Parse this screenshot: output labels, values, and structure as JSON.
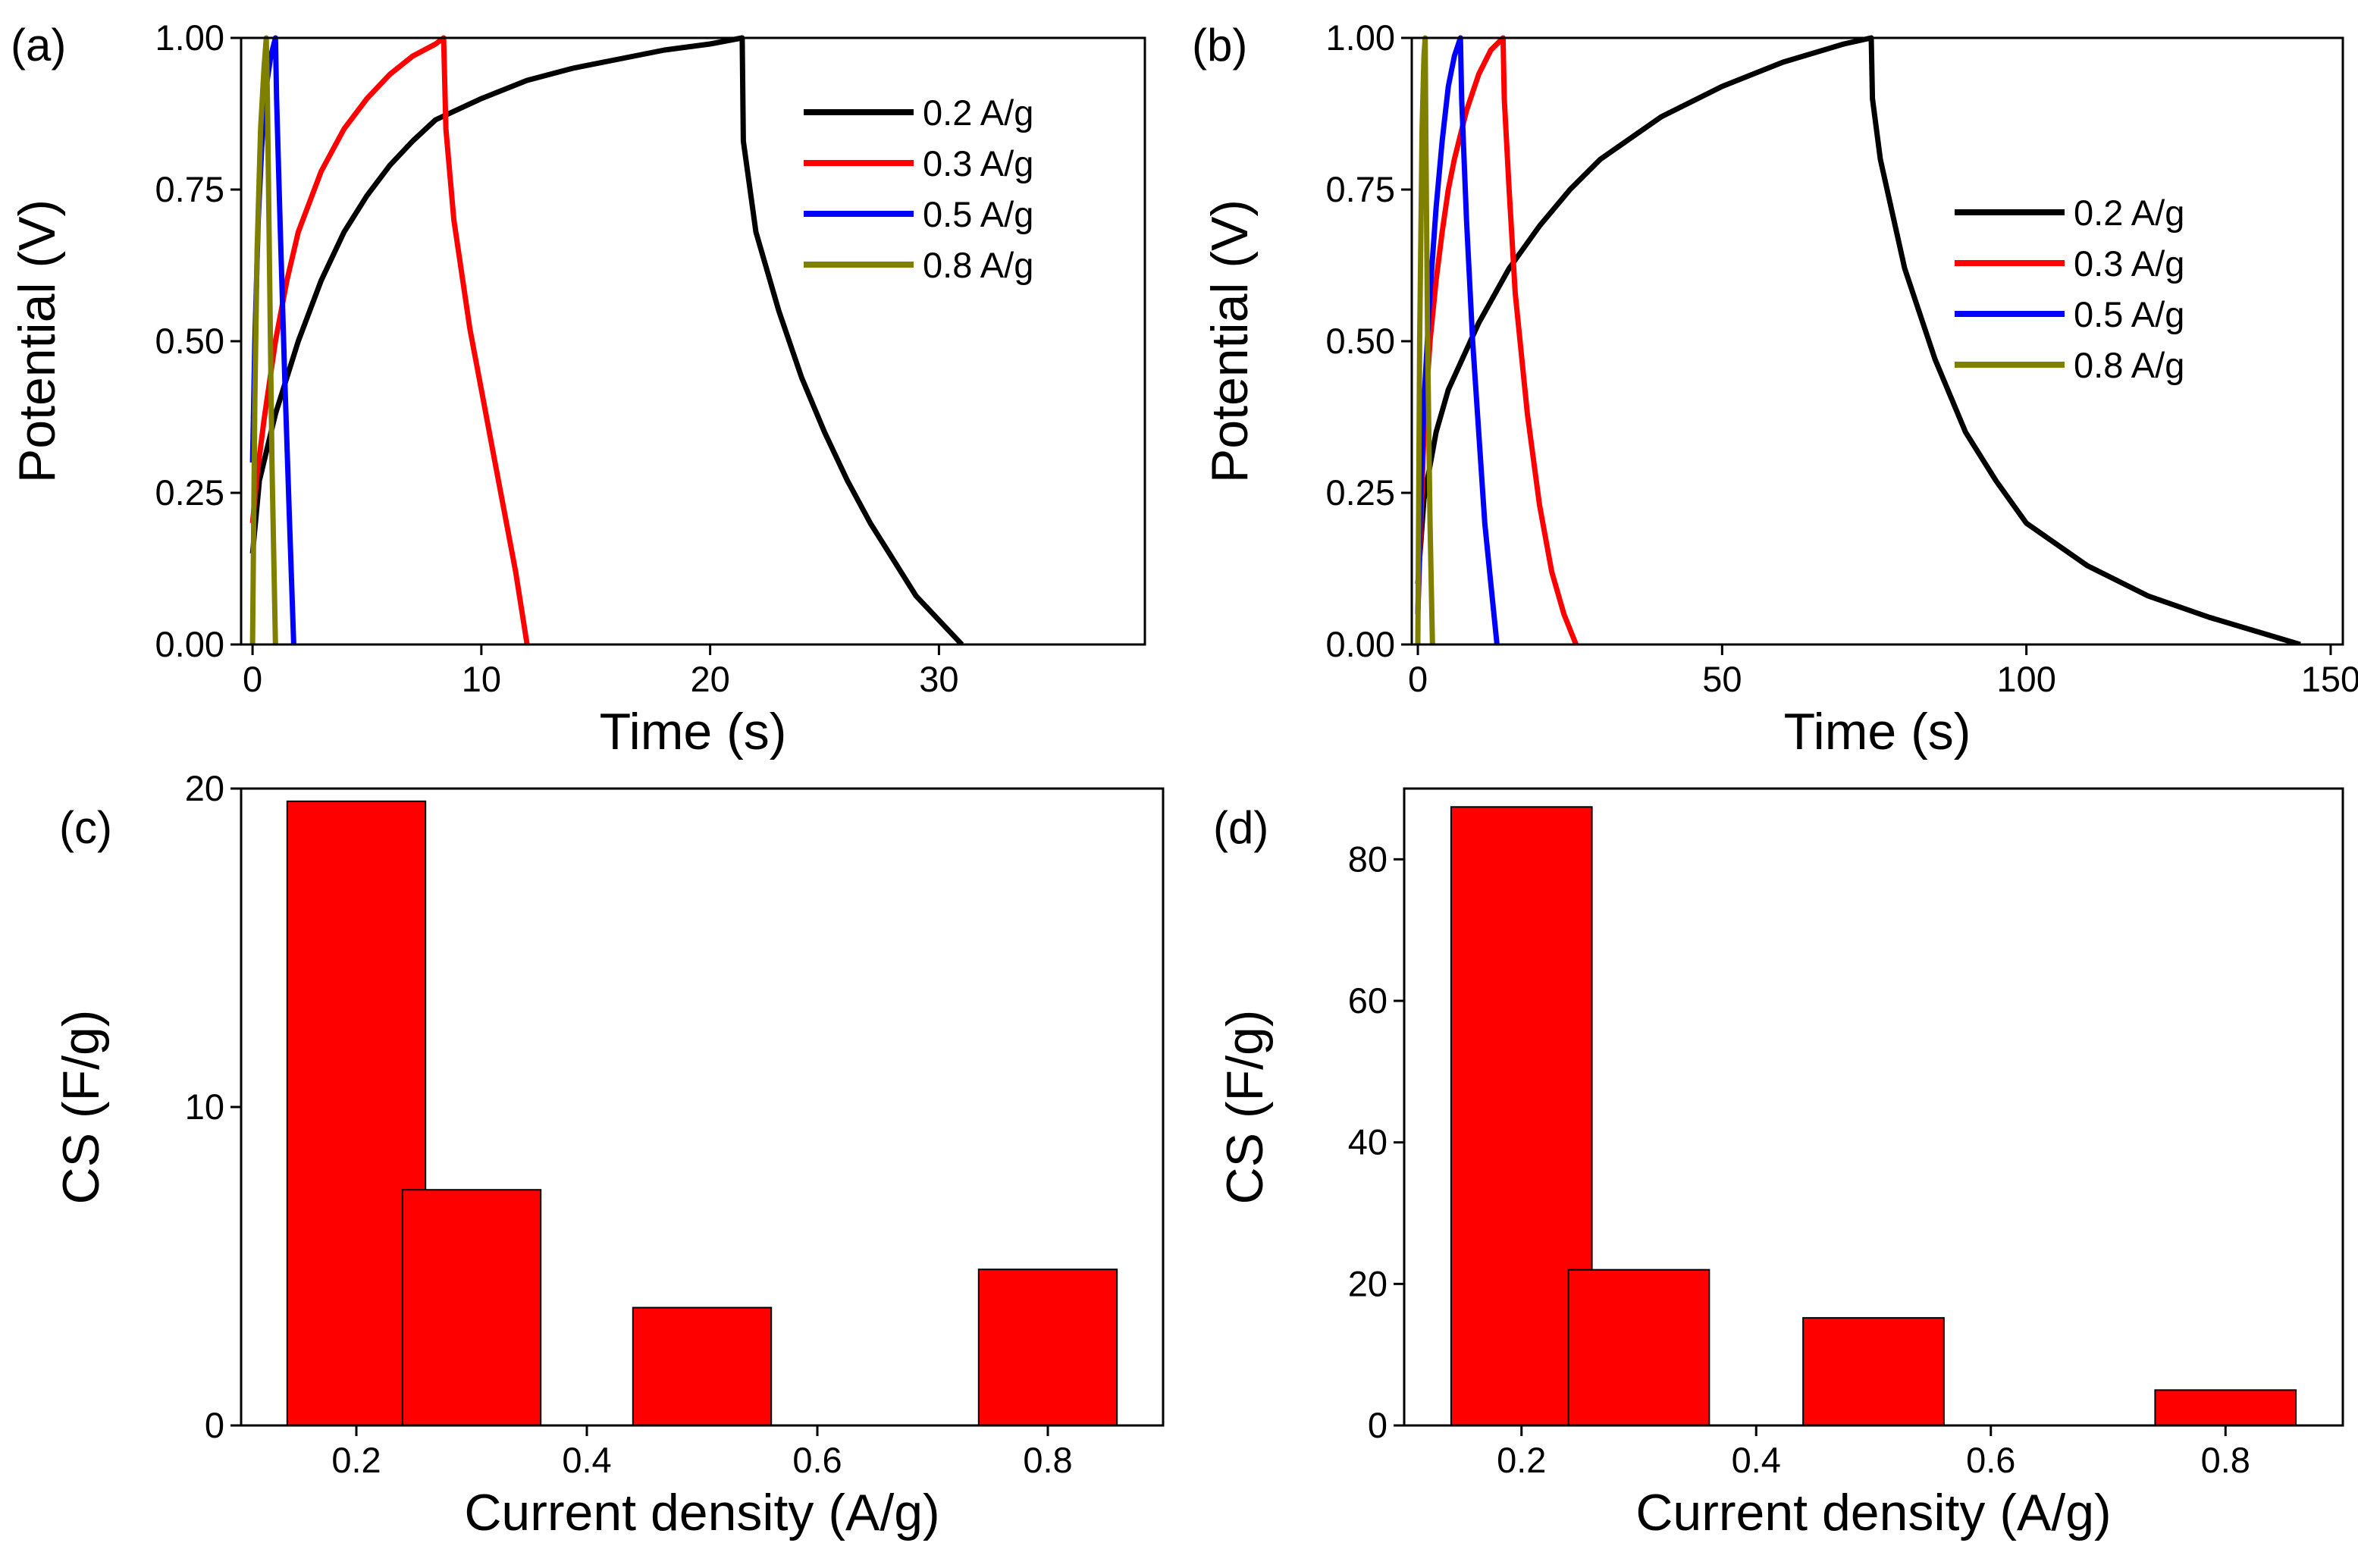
{
  "chart_data": [
    {
      "panel_label": "(a)",
      "type": "line",
      "xlabel": "Time (s)",
      "ylabel": "Potential (V)",
      "xlim": [
        -0.5,
        39
      ],
      "ylim": [
        0,
        1.0
      ],
      "xticks": [
        "0",
        "10",
        "20",
        "30"
      ],
      "xtick_values": [
        0,
        10,
        20,
        30
      ],
      "yticks": [
        "0.00",
        "0.25",
        "0.50",
        "0.75",
        "1.00"
      ],
      "ytick_values": [
        0,
        0.25,
        0.5,
        0.75,
        1.0
      ],
      "grid": false,
      "legend_position": "top-right",
      "series": [
        {
          "name": "0.2 A/g",
          "color": "#000000",
          "points": [
            [
              0,
              0.15
            ],
            [
              0.3,
              0.27
            ],
            [
              1,
              0.38
            ],
            [
              2,
              0.5
            ],
            [
              3,
              0.6
            ],
            [
              4,
              0.68
            ],
            [
              5,
              0.74
            ],
            [
              6,
              0.79
            ],
            [
              7,
              0.83
            ],
            [
              8,
              0.865
            ],
            [
              10,
              0.9
            ],
            [
              12,
              0.93
            ],
            [
              14,
              0.95
            ],
            [
              16,
              0.965
            ],
            [
              18,
              0.98
            ],
            [
              20,
              0.99
            ],
            [
              21.4,
              1.0
            ],
            [
              21.45,
              0.83
            ],
            [
              22,
              0.68
            ],
            [
              23,
              0.55
            ],
            [
              24,
              0.44
            ],
            [
              25,
              0.35
            ],
            [
              26,
              0.27
            ],
            [
              27,
              0.2
            ],
            [
              28,
              0.14
            ],
            [
              29,
              0.08
            ],
            [
              30,
              0.04
            ],
            [
              31,
              0.0
            ]
          ]
        },
        {
          "name": "0.3 A/g",
          "color": "#ff0000",
          "points": [
            [
              0,
              0.2
            ],
            [
              0.2,
              0.28
            ],
            [
              0.5,
              0.37
            ],
            [
              1,
              0.5
            ],
            [
              1.5,
              0.6
            ],
            [
              2,
              0.68
            ],
            [
              3,
              0.78
            ],
            [
              4,
              0.85
            ],
            [
              5,
              0.9
            ],
            [
              6,
              0.94
            ],
            [
              7,
              0.97
            ],
            [
              8,
              0.99
            ],
            [
              8.35,
              1.0
            ],
            [
              8.45,
              0.85
            ],
            [
              8.8,
              0.7
            ],
            [
              9.5,
              0.52
            ],
            [
              10,
              0.42
            ],
            [
              10.5,
              0.32
            ],
            [
              11,
              0.22
            ],
            [
              11.5,
              0.12
            ],
            [
              12,
              0.0
            ]
          ]
        },
        {
          "name": "0.5 A/g",
          "color": "#0000ff",
          "points": [
            [
              0,
              0.3
            ],
            [
              0.1,
              0.5
            ],
            [
              0.25,
              0.7
            ],
            [
              0.4,
              0.82
            ],
            [
              0.6,
              0.92
            ],
            [
              0.8,
              0.97
            ],
            [
              1.0,
              1.0
            ],
            [
              1.05,
              0.9
            ],
            [
              1.2,
              0.7
            ],
            [
              1.4,
              0.45
            ],
            [
              1.6,
              0.22
            ],
            [
              1.8,
              0.0
            ]
          ]
        },
        {
          "name": "0.8 A/g",
          "color": "#808000",
          "points": [
            [
              0,
              0.0
            ],
            [
              0.1,
              0.4
            ],
            [
              0.2,
              0.65
            ],
            [
              0.35,
              0.85
            ],
            [
              0.5,
              0.95
            ],
            [
              0.6,
              1.0
            ],
            [
              0.65,
              0.9
            ],
            [
              0.75,
              0.6
            ],
            [
              0.85,
              0.3
            ],
            [
              1.0,
              0.0
            ]
          ]
        }
      ]
    },
    {
      "panel_label": "(b)",
      "type": "line",
      "xlabel": "Time (s)",
      "ylabel": "Potential (V)",
      "xlim": [
        -1,
        152
      ],
      "ylim": [
        0,
        1.0
      ],
      "xticks": [
        "0",
        "50",
        "100",
        "150"
      ],
      "xtick_values": [
        0,
        50,
        100,
        150
      ],
      "yticks": [
        "0.00",
        "0.25",
        "0.50",
        "0.75",
        "1.00"
      ],
      "ytick_values": [
        0,
        0.25,
        0.5,
        0.75,
        1.0
      ],
      "grid": false,
      "legend_position": "right",
      "series": [
        {
          "name": "0.2 A/g",
          "color": "#000000",
          "points": [
            [
              0,
              0.1
            ],
            [
              1,
              0.24
            ],
            [
              3,
              0.35
            ],
            [
              5,
              0.42
            ],
            [
              10,
              0.53
            ],
            [
              15,
              0.62
            ],
            [
              20,
              0.69
            ],
            [
              25,
              0.75
            ],
            [
              30,
              0.8
            ],
            [
              40,
              0.87
            ],
            [
              50,
              0.92
            ],
            [
              60,
              0.96
            ],
            [
              70,
              0.99
            ],
            [
              74.5,
              1.0
            ],
            [
              74.7,
              0.9
            ],
            [
              76,
              0.8
            ],
            [
              80,
              0.62
            ],
            [
              85,
              0.47
            ],
            [
              90,
              0.35
            ],
            [
              95,
              0.27
            ],
            [
              100,
              0.2
            ],
            [
              110,
              0.13
            ],
            [
              120,
              0.08
            ],
            [
              130,
              0.045
            ],
            [
              140,
              0.015
            ],
            [
              145,
              0.0
            ]
          ]
        },
        {
          "name": "0.3 A/g",
          "color": "#ff0000",
          "points": [
            [
              0,
              0.05
            ],
            [
              0.5,
              0.2
            ],
            [
              1,
              0.35
            ],
            [
              2,
              0.5
            ],
            [
              3,
              0.6
            ],
            [
              4,
              0.68
            ],
            [
              5,
              0.75
            ],
            [
              6,
              0.8
            ],
            [
              8,
              0.88
            ],
            [
              10,
              0.94
            ],
            [
              12,
              0.98
            ],
            [
              14,
              1.0
            ],
            [
              14.2,
              0.9
            ],
            [
              15,
              0.75
            ],
            [
              16,
              0.58
            ],
            [
              18,
              0.38
            ],
            [
              20,
              0.23
            ],
            [
              22,
              0.12
            ],
            [
              24,
              0.05
            ],
            [
              26,
              0.0
            ]
          ]
        },
        {
          "name": "0.5 A/g",
          "color": "#0000ff",
          "points": [
            [
              0,
              0.05
            ],
            [
              0.5,
              0.25
            ],
            [
              1,
              0.4
            ],
            [
              2,
              0.58
            ],
            [
              3,
              0.72
            ],
            [
              4,
              0.83
            ],
            [
              5,
              0.92
            ],
            [
              6,
              0.97
            ],
            [
              7,
              1.0
            ],
            [
              7.2,
              0.9
            ],
            [
              8,
              0.7
            ],
            [
              9,
              0.5
            ],
            [
              10,
              0.35
            ],
            [
              11,
              0.2
            ],
            [
              12,
              0.1
            ],
            [
              13,
              0.0
            ]
          ]
        },
        {
          "name": "0.8 A/g",
          "color": "#808000",
          "points": [
            [
              0,
              0.0
            ],
            [
              0.3,
              0.5
            ],
            [
              0.7,
              0.85
            ],
            [
              1.0,
              0.97
            ],
            [
              1.2,
              1.0
            ],
            [
              1.3,
              0.85
            ],
            [
              1.6,
              0.5
            ],
            [
              2.0,
              0.2
            ],
            [
              2.4,
              0.0
            ]
          ]
        }
      ]
    },
    {
      "panel_label": "(c)",
      "type": "bar",
      "xlabel": "Current density (A/g)",
      "ylabel": "CS (F/g)",
      "xlim": [
        0.1,
        0.9
      ],
      "ylim": [
        0,
        20
      ],
      "xticks": [
        "0.2",
        "0.4",
        "0.6",
        "0.8"
      ],
      "xtick_values": [
        0.2,
        0.4,
        0.6,
        0.8
      ],
      "yticks": [
        "0",
        "10",
        "20"
      ],
      "ytick_values": [
        0,
        10,
        20
      ],
      "grid": false,
      "bar_color": "#ff0000",
      "bar_width": 0.12,
      "x": [
        0.2,
        0.3,
        0.5,
        0.8
      ],
      "values": [
        19.6,
        7.4,
        3.7,
        4.9
      ]
    },
    {
      "panel_label": "(d)",
      "type": "bar",
      "xlabel": "Current density (A/g)",
      "ylabel": "CS (F/g)",
      "xlim": [
        0.1,
        0.9
      ],
      "ylim": [
        0,
        90
      ],
      "xticks": [
        "0.2",
        "0.4",
        "0.6",
        "0.8"
      ],
      "xtick_values": [
        0.2,
        0.4,
        0.6,
        0.8
      ],
      "yticks": [
        "0",
        "20",
        "40",
        "60",
        "80"
      ],
      "ytick_values": [
        0,
        20,
        40,
        60,
        80
      ],
      "grid": false,
      "bar_color": "#ff0000",
      "bar_width": 0.12,
      "x": [
        0.2,
        0.3,
        0.5,
        0.8
      ],
      "values": [
        87.4,
        22,
        15.2,
        5
      ]
    }
  ]
}
